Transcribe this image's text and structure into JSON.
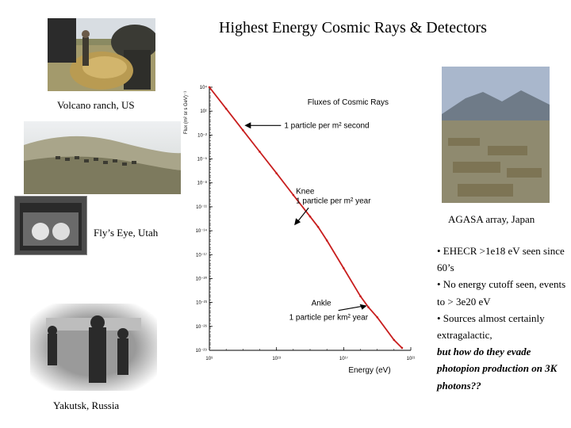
{
  "slide": {
    "title": "Highest Energy Cosmic Rays & Detectors"
  },
  "photos": [
    {
      "caption": "Volcano ranch, US"
    },
    {
      "caption": "Fly’s Eye, Utah"
    },
    {
      "caption": "AGASA array, Japan"
    },
    {
      "caption": "Yakutsk, Russia"
    }
  ],
  "bullets": [
    {
      "text": "• EHECR >1e18 eV seen since 60’s"
    },
    {
      "text": "• No energy cutoff seen, events to > 3e20 eV"
    },
    {
      "text": "• Sources almost certainly extragalactic,"
    },
    {
      "text": "but how do they evade photopion production on 3K photons??",
      "emphasis": true
    }
  ],
  "chart_data": {
    "type": "line",
    "title": "Fluxes of Cosmic Rays",
    "xlabel": "Energy (eV)",
    "ylabel": "Flux (m² sr s GeV)⁻¹",
    "x_scale": "log",
    "y_scale": "log",
    "xlim": [
      1000000000.0,
      1e+21
    ],
    "ylim": [
      1e-29,
      10000.0
    ],
    "x_ticks": [
      {
        "value": 1000000000.0,
        "label": "10⁹"
      },
      {
        "value": 10000000000000.0,
        "label": "10¹³"
      },
      {
        "value": 1e+17,
        "label": "10¹⁷"
      },
      {
        "value": 1e+21,
        "label": "10²¹"
      }
    ],
    "y_ticks": [
      {
        "value": 10000.0,
        "label": "10⁴"
      },
      {
        "value": 10.0,
        "label": "10¹"
      },
      {
        "value": 0.01,
        "label": "10⁻²"
      },
      {
        "value": 1e-05,
        "label": "10⁻⁵"
      },
      {
        "value": 1e-08,
        "label": "10⁻⁸"
      },
      {
        "value": 1e-11,
        "label": "10⁻¹¹"
      },
      {
        "value": 1e-14,
        "label": "10⁻¹⁴"
      },
      {
        "value": 1e-17,
        "label": "10⁻¹⁷"
      },
      {
        "value": 1e-20,
        "label": "10⁻²⁰"
      },
      {
        "value": 1e-23,
        "label": "10⁻²³"
      },
      {
        "value": 1e-26,
        "label": "10⁻²⁶"
      },
      {
        "value": 1e-29,
        "label": "10⁻²⁹"
      }
    ],
    "series": [
      {
        "color": "#c81e1e",
        "points": [
          [
            1000000000.0,
            10000.0
          ],
          [
            10000000000.0,
            20.0
          ],
          [
            100000000000.0,
            0.04
          ],
          [
            1000000000000.0,
            8e-05
          ],
          [
            10000000000000.0,
            1.6e-07
          ],
          [
            100000000000000.0,
            3e-10
          ],
          [
            1000000000000000.0,
            6e-13
          ],
          [
            3000000000000000.0,
            3e-14
          ],
          [
            1e+16,
            6e-16
          ],
          [
            1e+17,
            2e-19
          ],
          [
            1e+18,
            6e-23
          ],
          [
            3e+18,
            2.5e-24
          ],
          [
            1e+19,
            1.4e-25
          ],
          [
            1e+20,
            2e-28
          ],
          [
            3e+20,
            2e-29
          ]
        ]
      }
    ],
    "annotations": [
      {
        "text": "1 particle per m² second",
        "x": 100000000000.0,
        "y": 0.1
      },
      {
        "text": "Knee",
        "x": 3000000000000000.0,
        "y": 3e-14,
        "line2": "1 particle per m² year"
      },
      {
        "text": "Ankle",
        "x": 3e+18,
        "y": 2.5e-24,
        "line2": "1 particle per km² year"
      }
    ]
  }
}
